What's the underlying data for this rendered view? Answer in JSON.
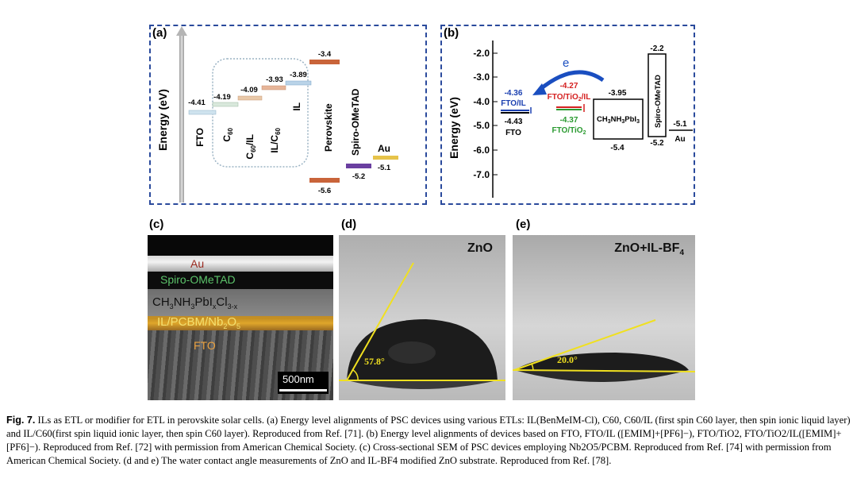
{
  "panel_a": {
    "label": "(a)",
    "ylabel": "Energy (eV)",
    "levels": [
      {
        "name": "FTO",
        "value": "-4.41",
        "color": "#cfe3ee"
      },
      {
        "name": "C60",
        "value": "-4.19",
        "color": "#d9e8dc"
      },
      {
        "name": "C60/IL",
        "value": "-4.09",
        "color": "#e9c8a8"
      },
      {
        "name": "IL/C60",
        "value": "-3.93",
        "color": "#e6b598"
      },
      {
        "name": "IL",
        "value": "-3.89",
        "color": "#b9d3e8"
      },
      {
        "name": "Perovskite",
        "lumo": "-3.4",
        "homo": "-5.6",
        "color": "#c9643a"
      },
      {
        "name": "Spiro-OMeTAD",
        "value": "-5.2",
        "color": "#6a3fa0"
      },
      {
        "name": "Au",
        "value": "-5.1",
        "color": "#e6c34a"
      }
    ]
  },
  "panel_b": {
    "label": "(b)",
    "ylabel": "Energy (eV)",
    "ticks": [
      "-2.0",
      "-3.0",
      "-4.0",
      "-5.0",
      "-6.0",
      "-7.0"
    ],
    "electron": "e",
    "fto_il_value": "-4.36",
    "fto_il_name": "FTO/IL",
    "fto_value": "-4.43",
    "fto_name": "FTO",
    "fto_tio2_il_value": "-4.27",
    "fto_tio2_il_name": "FTO/TiO2/IL",
    "fto_tio2_value": "-4.37",
    "fto_tio2_name": "FTO/TiO2",
    "perov_top": "-3.95",
    "perov_bottom": "-5.4",
    "perov_name": "CH3NH3PbI3",
    "spiro_top": "-2.2",
    "spiro_bottom": "-5.2",
    "spiro_name": "Spiro-OMeTAD",
    "au_value": "-5.1",
    "au_name": "Au"
  },
  "panel_c": {
    "label": "(c)",
    "au": "Au",
    "spiro": "Spiro-OMeTAD",
    "perov": "CH3NH3PbIxCl3-x",
    "etl": "IL/PCBM/Nb2O5",
    "fto": "FTO",
    "scale": "500nm"
  },
  "panel_d": {
    "label": "(d)",
    "sample": "ZnO",
    "angle": "57.8°"
  },
  "panel_e": {
    "label": "(e)",
    "sample": "ZnO+IL-BF4",
    "angle": "20.0°"
  },
  "caption": {
    "figno": "Fig. 7.",
    "text": "ILs as ETL or modifier for ETL in perovskite solar cells. (a) Energy level alignments of PSC devices using various ETLs: IL(BenMeIM-Cl), C60, C60/IL (first spin C60 layer, then spin ionic liquid layer) and IL/C60(first spin liquid ionic layer, then spin C60 layer). Reproduced from Ref. [71]. (b) Energy level alignments of devices based on FTO, FTO/IL ([EMIM]+[PF6]−), FTO/TiO2, FTO/TiO2/IL([EMIM]+[PF6]−). Reproduced from Ref. [72] with permission from American Chemical Society. (c) Cross-sectional SEM of PSC devices employing Nb2O5/PCBM. Reproduced from Ref. [74] with permission from American Chemical Society. (d and e) The water contact angle measurements of ZnO and IL-BF4 modified ZnO substrate. Reproduced from Ref. [78]."
  }
}
